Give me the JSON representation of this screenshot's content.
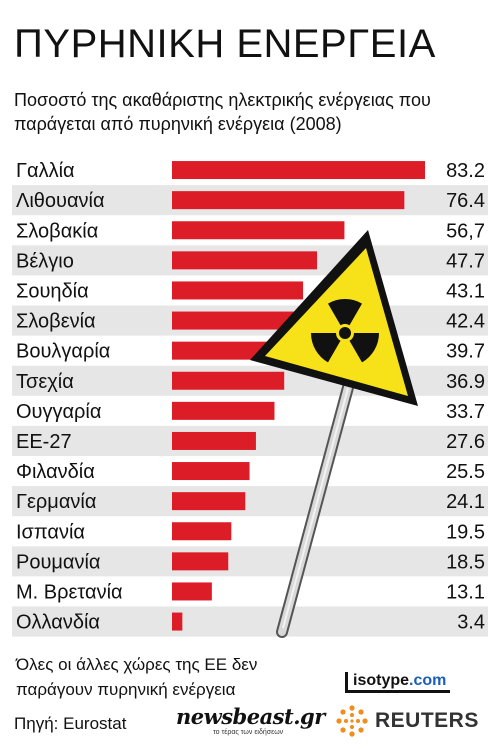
{
  "title": "ΠΥΡΗΝΙΚΗ ΕΝΕΡΓΕΙΑ",
  "subtitle": "Ποσοστό της ακαθάριστης ηλεκτρικής ενέργειας που παράγεται από πυρηνική ενέργεια (2008)",
  "footnote_lines": [
    "Όλες οι άλλες χώρες της ΕΕ δεν",
    "παράγουν πυρηνική ενέργεια"
  ],
  "source": "Πηγή: Eurostat",
  "logos": {
    "isotype_black": "isotype",
    "isotype_blue": ".com",
    "newsbeast": "newsbeast.gr",
    "newsbeast_tagline": "το τέρας των ειδήσεων",
    "reuters": "REUTERS"
  },
  "colors": {
    "bar": "#dc1c26",
    "stripe": "#e6e6e6",
    "sign_fill": "#f7e21a",
    "sign_border": "#111111"
  },
  "icons": [
    "radiation-warning-sign-icon",
    "reuters-dots-icon"
  ],
  "chart_data": {
    "type": "bar",
    "orientation": "horizontal",
    "title": "ΠΥΡΗΝΙΚΗ ΕΝΕΡΓΕΙΑ",
    "subtitle": "Ποσοστό της ακαθάριστης ηλεκτρικής ενέργειας που παράγεται από πυρηνική ενέργεια (2008)",
    "categories": [
      "Γαλλία",
      "Λιθουανία",
      "Σλοβακία",
      "Βέλγιο",
      "Σουηδία",
      "Σλοβενία",
      "Βουλγαρία",
      "Τσεχία",
      "Ουγγαρία",
      "ΕΕ-27",
      "Φιλανδία",
      "Γερμανία",
      "Ισπανία",
      "Ρουμανία",
      "Μ. Βρετανία",
      "Ολλανδία"
    ],
    "values": [
      83.2,
      76.4,
      56.7,
      47.7,
      43.1,
      42.4,
      39.7,
      36.9,
      33.7,
      27.6,
      25.5,
      24.1,
      19.5,
      18.5,
      13.1,
      3.4
    ],
    "value_labels": [
      "83.2",
      "76.4",
      "56,7",
      "47.7",
      "43.1",
      "42.4",
      "39.7",
      "36.9",
      "33.7",
      "27.6",
      "25.5",
      "24.1",
      "19.5",
      "18.5",
      "13.1",
      "3.4"
    ],
    "xlim": [
      0,
      83.2
    ],
    "grid": false,
    "legend": "none"
  }
}
